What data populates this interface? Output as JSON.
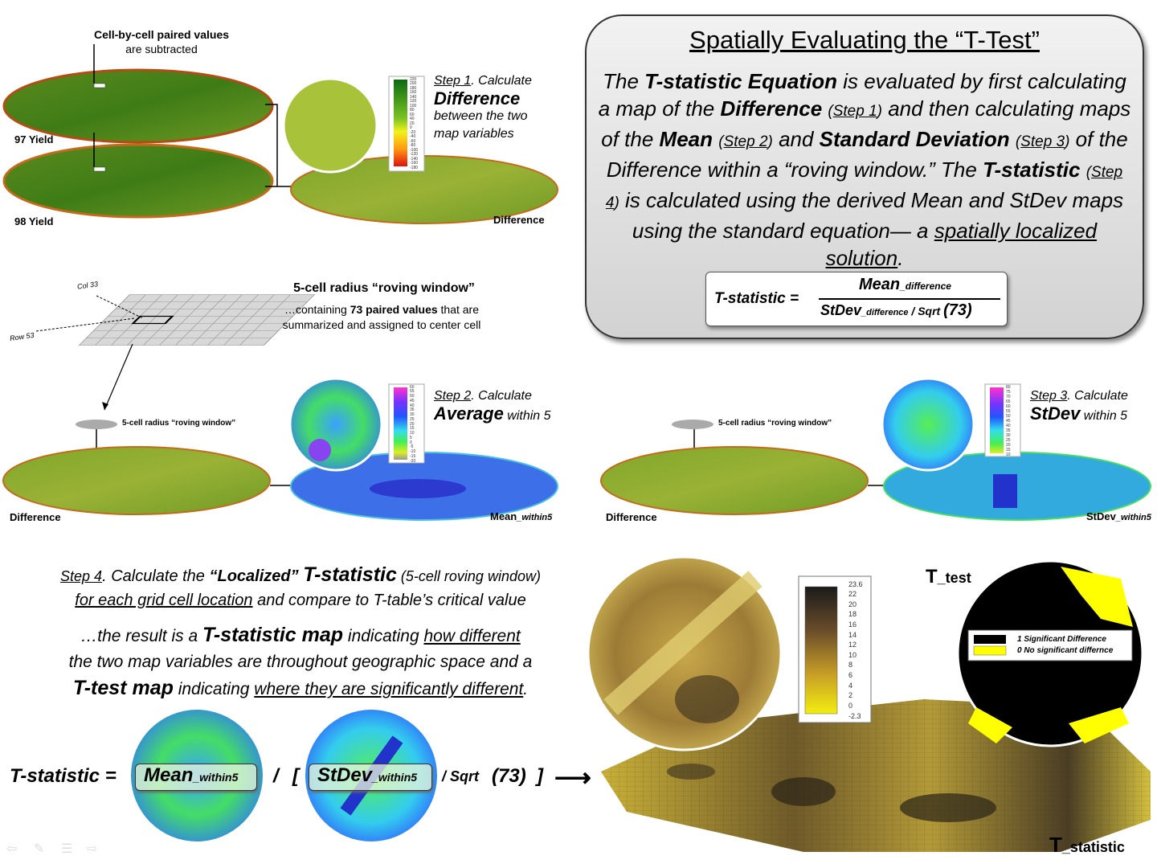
{
  "panel1": {
    "callout_bold": "Cell-by-cell paired values",
    "callout_line2": "are subtracted",
    "label_97": "97 Yield",
    "label_98": "98 Yield",
    "label_difference": "Difference",
    "step_link": "Step 1",
    "step_rest": ".  Calculate",
    "step_big": "Difference",
    "step_line3": "between the two",
    "step_line4": "map variables",
    "legend_ticks": [
      "220",
      "200",
      "180",
      "160",
      "140",
      "120",
      "100",
      "80",
      "60",
      "40",
      "20",
      "0",
      "-20",
      "-40",
      "-60",
      "-80",
      "-100",
      "-120",
      "-140",
      "-160",
      "-180"
    ]
  },
  "roving": {
    "col_label": "Col 33",
    "row_label": "Row 53",
    "title": "5-cell radius “roving window”",
    "desc_a": "…containing ",
    "desc_bold": "73 paired values",
    "desc_b": " that are",
    "desc_line2": "summarized and assigned to center cell"
  },
  "panel2": {
    "window_label": "5-cell radius “roving window”",
    "label_difference": "Difference",
    "label_mean": "Mean",
    "label_mean_sub": "_within5",
    "step_link": "Step 2",
    "step_rest": ".  Calculate",
    "step_big": "Average",
    "step_tail": " within 5",
    "legend_ticks": [
      "60",
      "55",
      "50",
      "45",
      "40",
      "35",
      "30",
      "25",
      "20",
      "15",
      "10",
      "5",
      "0",
      "-5",
      "-10",
      "-15",
      "-20"
    ]
  },
  "panel3": {
    "window_label": "5-cell radius “roving window”",
    "label_difference": "Difference",
    "label_stdev": "StDev",
    "label_stdev_sub": "_within5",
    "step_link": "Step 3",
    "step_rest": ".   Calculate",
    "step_big": "StDev",
    "step_tail": " within 5",
    "legend_ticks": [
      "80",
      "75",
      "70",
      "65",
      "60",
      "55",
      "50",
      "45",
      "40",
      "35",
      "30",
      "25",
      "20",
      "15",
      "10"
    ]
  },
  "title_box": {
    "title": "Spatially Evaluating the “T-Test”",
    "p1": "The ",
    "b1": "T-statistic Equation",
    "p2": " is evaluated by first calculating a map of the ",
    "b2": "Difference",
    "s1": "Step 1",
    "p3": " and then calculating maps of the ",
    "b3": "Mean",
    "s2": "Step 2",
    "p4": " and ",
    "b4": "Standard Deviation",
    "s3": "Step 3",
    "p5": " of the Difference within a “roving window.”  The ",
    "b5": "T-statistic",
    "s4": "Step 4",
    "p6": " is calculated using the derived Mean and StDev maps using the standard equation— a ",
    "u1": "spatially localized solution",
    "p7": ".",
    "formula_lhs": "T-statistic =",
    "formula_num": "Mean",
    "formula_num_sub": "_difference",
    "formula_den_a": "StDev",
    "formula_den_sub": "_difference",
    "formula_den_b": " / Sqrt ",
    "formula_den_c": "(73)"
  },
  "step4": {
    "step_link": "Step 4",
    "t1": ".  Calculate the ",
    "t2": "“Localized”",
    "t3": "T-statistic",
    "t4": " (5-cell roving window)",
    "t5": "for each grid cell location",
    "t6": " and compare to T-table’s critical value",
    "r1": "…the result is a ",
    "r2": "T-statistic map",
    "r3": " indicating ",
    "r4": "how different",
    "r5": "the two map variables are throughout geographic space and a",
    "r6": "T-test map",
    "r7": " indicating ",
    "r8": "where they are significantly different",
    "r9": "."
  },
  "equation": {
    "lhs": "T-statistic =",
    "mean": "Mean",
    "mean_sub": "_within5",
    "slash": "/",
    "bracket_open": "[",
    "stdev": "StDev",
    "stdev_sub": "_within5",
    "sqrt": "/ Sqrt",
    "n": "(73)",
    "bracket_close": "]",
    "arrow": "⟶"
  },
  "tstat_map": {
    "legend_ticks": [
      "23.6",
      "22",
      "20",
      "18",
      "16",
      "14",
      "12",
      "10",
      "8",
      "6",
      "4",
      "2",
      "0",
      "-2.3"
    ],
    "label_main": "T",
    "label_sub": "_statistic"
  },
  "ttest_map": {
    "label_main": "T",
    "label_sub": "_test",
    "legend_1": "1 Significant Difference",
    "legend_0": "0 No significant differnce",
    "color_sig": "#000000",
    "color_nosig": "#ffff00"
  },
  "nav_icons": [
    "back-arrow-icon",
    "pen-icon",
    "menu-icon",
    "forward-arrow-icon"
  ]
}
